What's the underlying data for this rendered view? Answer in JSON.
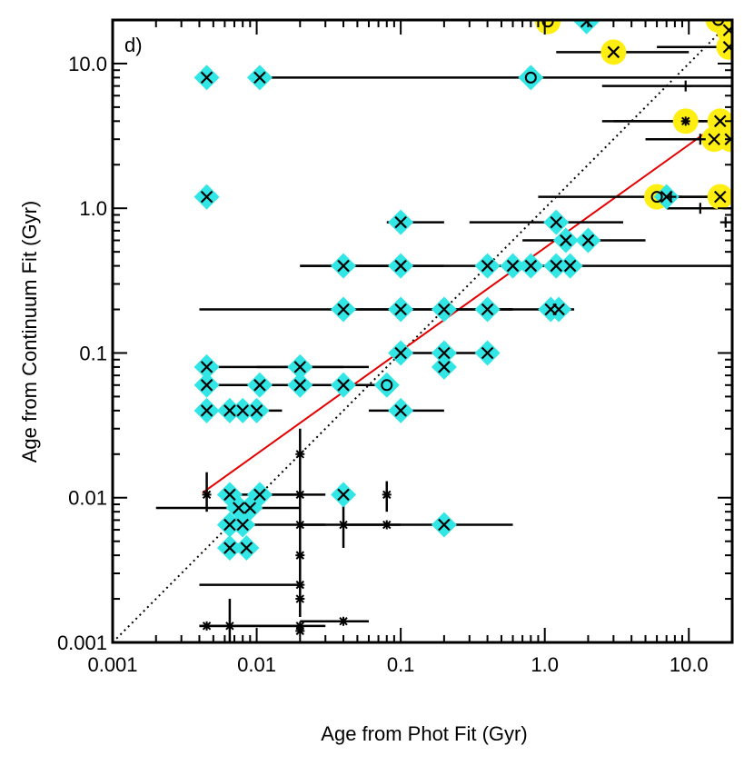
{
  "chart_data": {
    "type": "scatter",
    "panel_label": "d)",
    "xlabel": "Age from Phot Fit  (Gyr)",
    "ylabel": "Age from Continuum Fit  (Gyr)",
    "xscale": "log",
    "yscale": "log",
    "xlim": [
      0.001,
      20
    ],
    "ylim": [
      0.001,
      20
    ],
    "xticks": [
      {
        "value": 0.001,
        "label": "0.001"
      },
      {
        "value": 0.01,
        "label": "0.01"
      },
      {
        "value": 0.1,
        "label": "0.1"
      },
      {
        "value": 1.0,
        "label": "1.0"
      },
      {
        "value": 10.0,
        "label": "10.0"
      }
    ],
    "yticks": [
      {
        "value": 0.001,
        "label": "0.001"
      },
      {
        "value": 0.01,
        "label": "0.01"
      },
      {
        "value": 0.1,
        "label": "0.1"
      },
      {
        "value": 1.0,
        "label": "1.0"
      },
      {
        "value": 10.0,
        "label": "10.0"
      }
    ],
    "colors": {
      "cyan": "#33e6e6",
      "yellow": "#ffee11",
      "fit_line": "#e60000",
      "one_to_one": "#000000",
      "marker": "#000000"
    },
    "one_to_one_line": {
      "from": [
        0.001,
        0.001
      ],
      "to": [
        20,
        20
      ],
      "style": "dotted"
    },
    "fit_line": {
      "from": [
        0.0042,
        0.0108
      ],
      "to": [
        20,
        4.5
      ],
      "style": "solid"
    },
    "points": [
      {
        "x": 0.0045,
        "y": 8.0,
        "hl": "cyan"
      },
      {
        "x": 0.0105,
        "y": 8.0,
        "hl": "cyan"
      },
      {
        "x": 0.0045,
        "y": 1.2,
        "hl": "cyan"
      },
      {
        "x": 0.8,
        "y": 8.0,
        "hl": "cyan",
        "marker": "o",
        "xerr": [
          0.01,
          20
        ]
      },
      {
        "x": 1.95,
        "y": 19.5,
        "hl": "cyan"
      },
      {
        "x": 1.05,
        "y": 19.5,
        "hl": "yellow",
        "marker": "o"
      },
      {
        "x": 3.0,
        "y": 12.0,
        "hl": "yellow",
        "xerr": [
          1.2,
          10
        ]
      },
      {
        "x": 16.0,
        "y": 20.0,
        "hl": "yellow",
        "marker": "o"
      },
      {
        "x": 19.0,
        "y": 13.0,
        "hl": "yellow",
        "xerr": [
          6.0,
          20
        ]
      },
      {
        "x": 19.0,
        "y": 17.0,
        "hl": "yellow"
      },
      {
        "x": 9.5,
        "y": 4.0,
        "hl": "yellow",
        "marker": "*",
        "xerr": [
          2.5,
          20
        ]
      },
      {
        "x": 16.5,
        "y": 4.0,
        "hl": "yellow",
        "xerr": [
          3.0,
          20
        ]
      },
      {
        "x": 15.0,
        "y": 3.0,
        "hl": "yellow"
      },
      {
        "x": 19.5,
        "y": 3.0,
        "hl": "yellow"
      },
      {
        "x": 6.0,
        "y": 1.2,
        "hl": "yellow",
        "marker": "o",
        "xerr": [
          0.9,
          20
        ]
      },
      {
        "x": 16.5,
        "y": 1.2,
        "hl": "yellow",
        "xerr": [
          7.0,
          20
        ]
      },
      {
        "x": 7.0,
        "y": 1.2,
        "hl": "cyan"
      },
      {
        "x": 7.5,
        "y": 1.2,
        "marker": "+",
        "xerr": [
          6.0,
          9.0
        ]
      },
      {
        "x": 9.5,
        "y": 7.0,
        "marker": "+",
        "xerr": [
          2.5,
          20
        ]
      },
      {
        "x": 12.0,
        "y": 3.0,
        "marker": "+",
        "xerr": [
          5.0,
          20
        ]
      },
      {
        "x": 12.0,
        "y": 1.0,
        "marker": "+",
        "xerr": [
          7.0,
          20
        ]
      },
      {
        "x": 18.0,
        "y": 0.8,
        "marker": "+"
      },
      {
        "x": 0.1,
        "y": 0.8,
        "hl": "cyan",
        "xerr": [
          0.08,
          0.2
        ]
      },
      {
        "x": 0.04,
        "y": 0.4,
        "hl": "cyan",
        "xerr": [
          0.02,
          0.09
        ]
      },
      {
        "x": 0.1,
        "y": 0.4,
        "hl": "cyan",
        "xerr": [
          0.04,
          0.2
        ]
      },
      {
        "x": 0.4,
        "y": 0.4,
        "hl": "cyan",
        "xerr": [
          0.02,
          1.2
        ]
      },
      {
        "x": 0.6,
        "y": 0.4,
        "hl": "cyan"
      },
      {
        "x": 0.8,
        "y": 0.4,
        "hl": "cyan"
      },
      {
        "x": 1.2,
        "y": 0.4,
        "hl": "cyan",
        "xerr": [
          0.6,
          20
        ]
      },
      {
        "x": 1.5,
        "y": 0.4,
        "hl": "cyan"
      },
      {
        "x": 1.2,
        "y": 0.8,
        "hl": "cyan",
        "xerr": [
          0.3,
          3.5
        ]
      },
      {
        "x": 1.4,
        "y": 0.6,
        "hl": "cyan",
        "xerr": [
          0.7,
          5.0
        ]
      },
      {
        "x": 2.0,
        "y": 0.6,
        "hl": "cyan"
      },
      {
        "x": 0.04,
        "y": 0.2,
        "hl": "cyan",
        "xerr": [
          0.004,
          0.6
        ]
      },
      {
        "x": 0.1,
        "y": 0.2,
        "hl": "cyan"
      },
      {
        "x": 0.2,
        "y": 0.2,
        "hl": "cyan",
        "xerr": [
          0.05,
          0.6
        ]
      },
      {
        "x": 0.4,
        "y": 0.2,
        "hl": "cyan"
      },
      {
        "x": 1.1,
        "y": 0.2,
        "hl": "cyan",
        "xerr": [
          0.5,
          1.6
        ]
      },
      {
        "x": 1.25,
        "y": 0.2,
        "hl": "cyan"
      },
      {
        "x": 0.1,
        "y": 0.1,
        "hl": "cyan"
      },
      {
        "x": 0.2,
        "y": 0.1,
        "hl": "cyan",
        "xerr": [
          0.1,
          0.4
        ]
      },
      {
        "x": 0.2,
        "y": 0.08,
        "hl": "cyan"
      },
      {
        "x": 0.4,
        "y": 0.1,
        "hl": "cyan"
      },
      {
        "x": 0.0045,
        "y": 0.08,
        "hl": "cyan",
        "xerr": [
          0.0043,
          0.04
        ]
      },
      {
        "x": 0.0045,
        "y": 0.06,
        "hl": "cyan",
        "xerr": [
          0.0043,
          0.02
        ]
      },
      {
        "x": 0.0045,
        "y": 0.04,
        "hl": "cyan",
        "xerr": [
          0.0043,
          0.015
        ]
      },
      {
        "x": 0.0105,
        "y": 0.06,
        "hl": "cyan"
      },
      {
        "x": 0.02,
        "y": 0.08,
        "hl": "cyan",
        "xerr": [
          0.01,
          0.06
        ]
      },
      {
        "x": 0.02,
        "y": 0.06,
        "hl": "cyan",
        "xerr": [
          0.01,
          0.04
        ]
      },
      {
        "x": 0.04,
        "y": 0.06,
        "hl": "cyan",
        "xerr": [
          0.02,
          0.09
        ]
      },
      {
        "x": 0.0065,
        "y": 0.04,
        "hl": "cyan"
      },
      {
        "x": 0.008,
        "y": 0.04,
        "hl": "cyan"
      },
      {
        "x": 0.01,
        "y": 0.04,
        "hl": "cyan"
      },
      {
        "x": 0.08,
        "y": 0.06,
        "hl": "cyan",
        "marker": "o"
      },
      {
        "x": 0.1,
        "y": 0.04,
        "hl": "cyan",
        "xerr": [
          0.06,
          0.2
        ]
      },
      {
        "x": 0.0045,
        "y": 0.0105,
        "marker": "*",
        "yerr": [
          0.008,
          0.015
        ]
      },
      {
        "x": 0.0065,
        "y": 0.0105,
        "hl": "cyan"
      },
      {
        "x": 0.0105,
        "y": 0.0105,
        "hl": "cyan",
        "xerr": [
          0.007,
          0.02
        ]
      },
      {
        "x": 0.0075,
        "y": 0.0085,
        "hl": "cyan",
        "xerr": [
          0.002,
          0.02
        ]
      },
      {
        "x": 0.009,
        "y": 0.0085,
        "hl": "cyan"
      },
      {
        "x": 0.0065,
        "y": 0.0065,
        "hl": "cyan"
      },
      {
        "x": 0.008,
        "y": 0.0065,
        "hl": "cyan"
      },
      {
        "x": 0.0065,
        "y": 0.0045,
        "hl": "cyan"
      },
      {
        "x": 0.0085,
        "y": 0.0045,
        "hl": "cyan"
      },
      {
        "x": 0.04,
        "y": 0.0105,
        "hl": "cyan"
      },
      {
        "x": 0.2,
        "y": 0.0065,
        "hl": "cyan",
        "xerr": [
          0.04,
          0.6
        ]
      },
      {
        "x": 0.08,
        "y": 0.0105,
        "marker": "*",
        "yerr": [
          0.008,
          0.013
        ]
      },
      {
        "x": 0.04,
        "y": 0.0065,
        "marker": "*",
        "xerr": [
          0.02,
          0.1
        ],
        "yerr": [
          0.0045,
          0.009
        ]
      },
      {
        "x": 0.08,
        "y": 0.0065,
        "marker": "*"
      },
      {
        "x": 0.02,
        "y": 0.02,
        "marker": "*",
        "yerr": [
          0.0015,
          0.03
        ]
      },
      {
        "x": 0.02,
        "y": 0.0105,
        "marker": "*",
        "xerr": [
          0.01,
          0.03
        ]
      },
      {
        "x": 0.02,
        "y": 0.0065,
        "marker": "*",
        "xerr": [
          0.006,
          0.03
        ]
      },
      {
        "x": 0.02,
        "y": 0.004,
        "marker": "*"
      },
      {
        "x": 0.02,
        "y": 0.0025,
        "marker": "*",
        "xerr": [
          0.004,
          0.02
        ]
      },
      {
        "x": 0.02,
        "y": 0.002,
        "marker": "*"
      },
      {
        "x": 0.0045,
        "y": 0.0013,
        "marker": "*",
        "xerr": [
          0.004,
          0.02
        ]
      },
      {
        "x": 0.0065,
        "y": 0.0013,
        "marker": "*",
        "yerr": [
          0.001,
          0.002
        ]
      },
      {
        "x": 0.02,
        "y": 0.0013,
        "marker": "*",
        "xerr": [
          0.004,
          0.03
        ]
      },
      {
        "x": 0.02,
        "y": 0.0012,
        "marker": "*"
      },
      {
        "x": 0.04,
        "y": 0.0014,
        "marker": "*",
        "xerr": [
          0.02,
          0.06
        ]
      }
    ]
  }
}
